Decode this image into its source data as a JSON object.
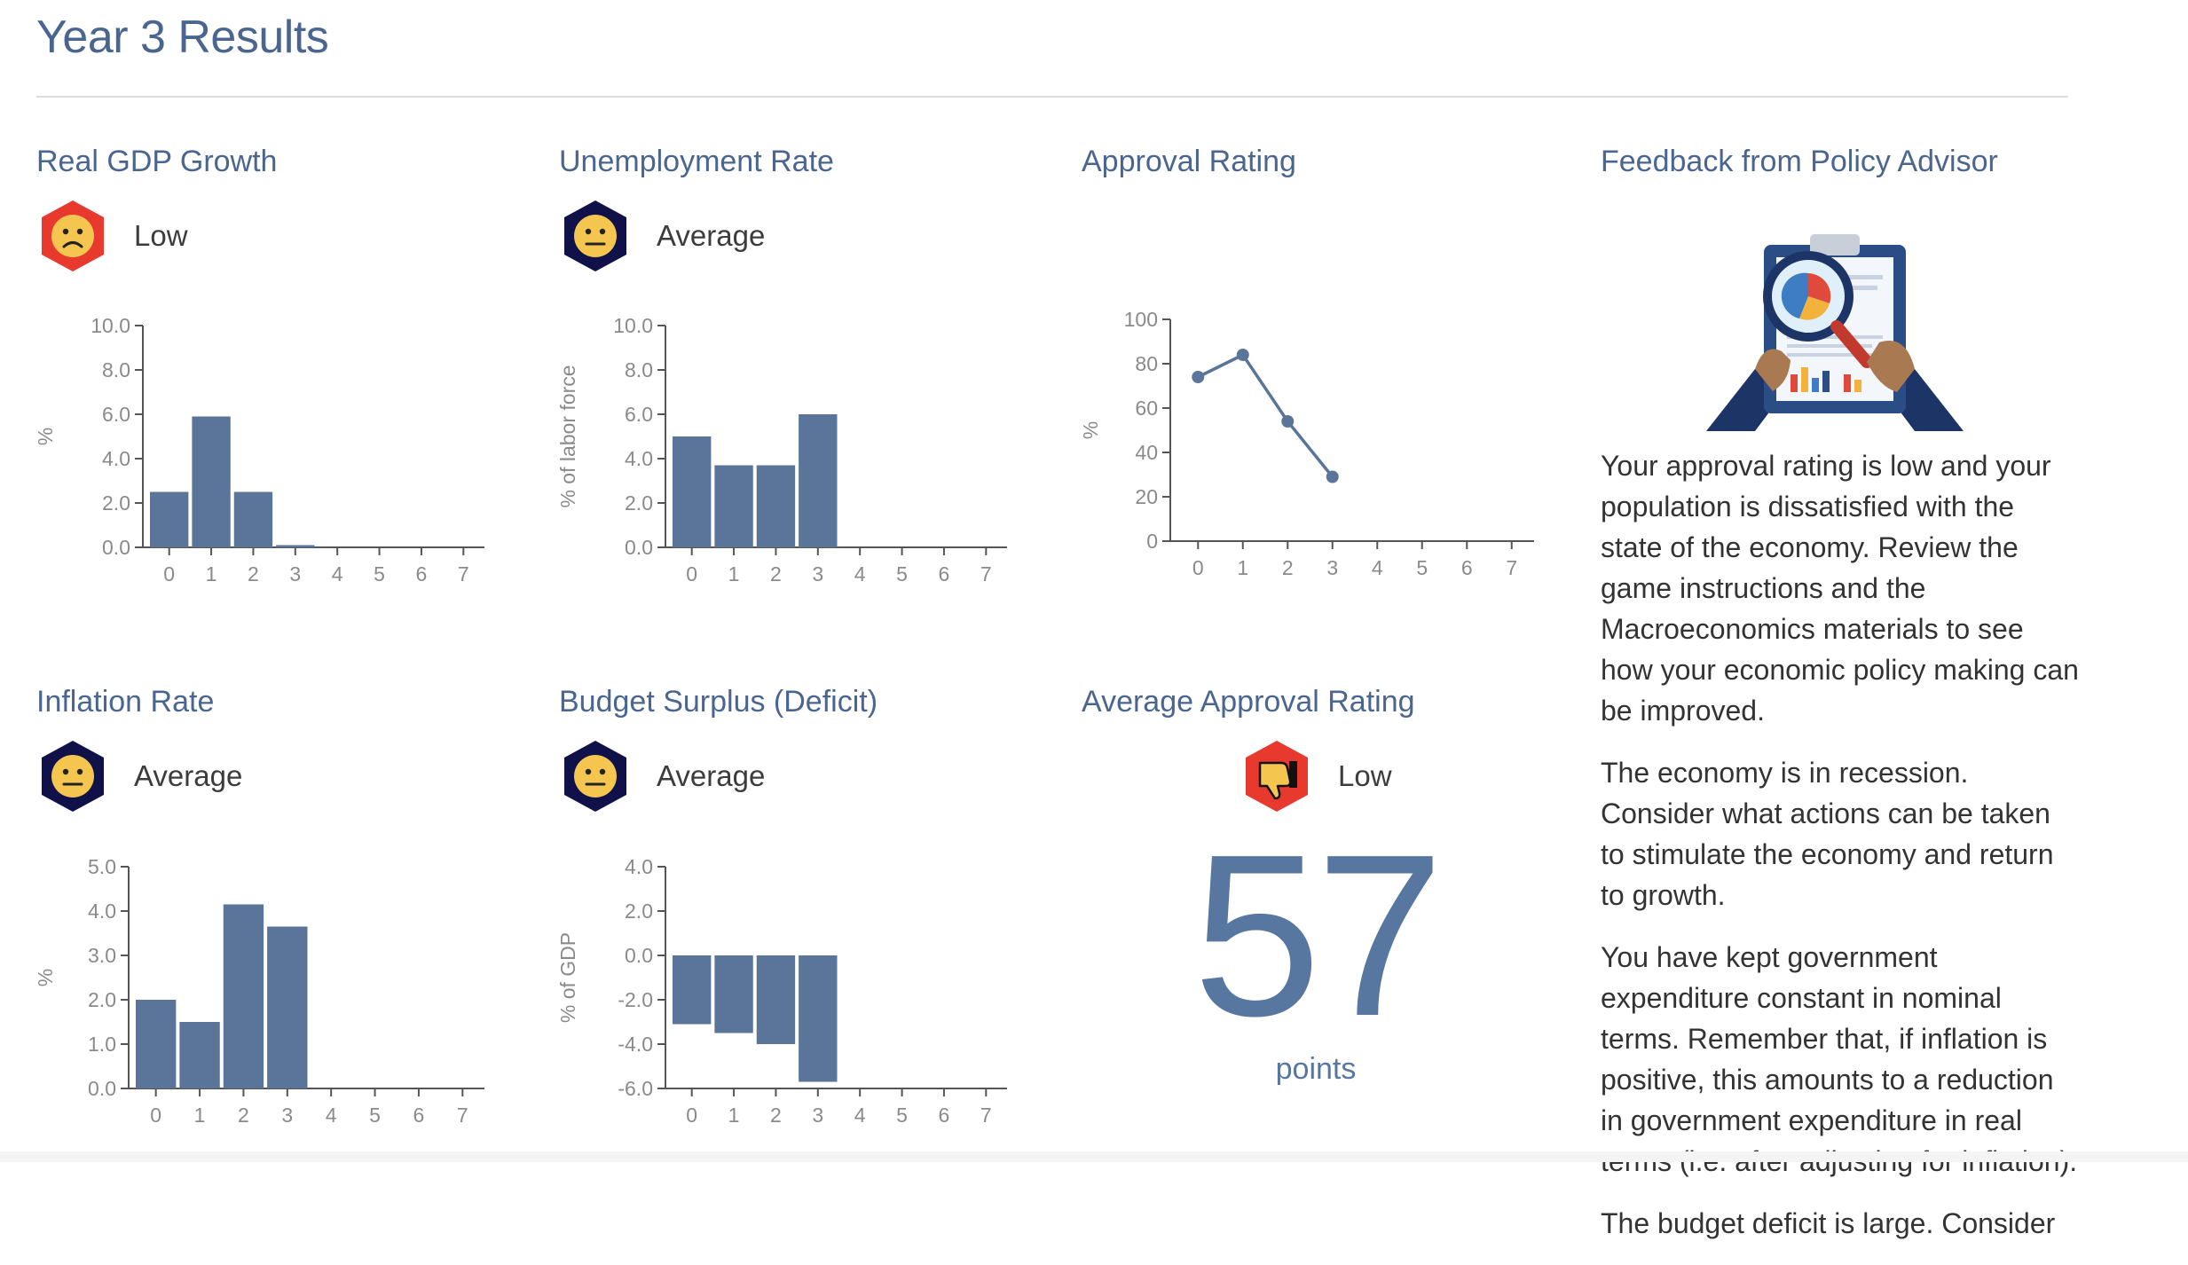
{
  "page": {
    "title": "Year 3 Results"
  },
  "panels": {
    "gdp": {
      "title": "Real GDP Growth",
      "status": "Low",
      "icon": "sad-face-icon",
      "ylabel": "%"
    },
    "unemployment": {
      "title": "Unemployment Rate",
      "status": "Average",
      "icon": "neutral-face-icon",
      "ylabel": "% of labor force"
    },
    "approval": {
      "title": "Approval Rating",
      "ylabel": "%"
    },
    "inflation": {
      "title": "Inflation Rate",
      "status": "Average",
      "icon": "neutral-face-icon",
      "ylabel": "%"
    },
    "budget": {
      "title": "Budget Surplus (Deficit)",
      "status": "Average",
      "icon": "neutral-face-icon",
      "ylabel": "% of GDP"
    },
    "avg_approval": {
      "title": "Average Approval Rating",
      "status": "Low",
      "icon": "thumbs-down-icon",
      "score": "57",
      "unit": "points"
    }
  },
  "feedback": {
    "title": "Feedback from Policy Advisor",
    "paragraphs": [
      "Your approval rating is low and your population is dissatisfied with the state of the economy. Review the game instructions and the Macroeconomics materials to see how your economic policy making can be improved.",
      "The economy is in recession. Consider what actions can be taken to stimulate the economy and return to growth.",
      "You have kept government expenditure constant in nominal terms. Remember that, if inflation is positive, this amounts to a reduction in government expenditure in real terms (i.e. after adjusting for inflation).",
      "The budget deficit is large. Consider"
    ]
  },
  "colors": {
    "accent": "#4a6690",
    "bar": "#5a7599",
    "status_low": "#e8392f",
    "status_average": "#11114a",
    "face": "#f4c64f"
  },
  "chart_data": [
    {
      "id": "gdp",
      "type": "bar",
      "categories": [
        "0",
        "1",
        "2",
        "3",
        "4",
        "5",
        "6",
        "7"
      ],
      "values": [
        2.5,
        5.9,
        2.5,
        0.1,
        null,
        null,
        null,
        null
      ],
      "ylabel": "%",
      "ylim": [
        0,
        10
      ],
      "yticks": [
        "0.0",
        "2.0",
        "4.0",
        "6.0",
        "8.0",
        "10.0"
      ]
    },
    {
      "id": "unemployment",
      "type": "bar",
      "categories": [
        "0",
        "1",
        "2",
        "3",
        "4",
        "5",
        "6",
        "7"
      ],
      "values": [
        5.0,
        3.7,
        3.7,
        6.0,
        null,
        null,
        null,
        null
      ],
      "ylabel": "% of labor force",
      "ylim": [
        0,
        10
      ],
      "yticks": [
        "0.0",
        "2.0",
        "4.0",
        "6.0",
        "8.0",
        "10.0"
      ]
    },
    {
      "id": "approval",
      "type": "line",
      "categories": [
        "0",
        "1",
        "2",
        "3",
        "4",
        "5",
        "6",
        "7"
      ],
      "values": [
        74,
        84,
        54,
        29,
        null,
        null,
        null,
        null
      ],
      "ylabel": "%",
      "ylim": [
        0,
        100
      ],
      "yticks": [
        "0",
        "20",
        "40",
        "60",
        "80",
        "100"
      ]
    },
    {
      "id": "inflation",
      "type": "bar",
      "categories": [
        "0",
        "1",
        "2",
        "3",
        "4",
        "5",
        "6",
        "7"
      ],
      "values": [
        2.0,
        1.5,
        4.15,
        3.65,
        null,
        null,
        null,
        null
      ],
      "ylabel": "%",
      "ylim": [
        0,
        5
      ],
      "yticks": [
        "0.0",
        "1.0",
        "2.0",
        "3.0",
        "4.0",
        "5.0"
      ]
    },
    {
      "id": "budget",
      "type": "bar",
      "categories": [
        "0",
        "1",
        "2",
        "3",
        "4",
        "5",
        "6",
        "7"
      ],
      "values": [
        -3.1,
        -3.5,
        -4.0,
        -5.7,
        null,
        null,
        null,
        null
      ],
      "ylabel": "% of GDP",
      "ylim": [
        -6,
        4
      ],
      "yticks": [
        "-6.0",
        "-4.0",
        "-2.0",
        "0.0",
        "2.0",
        "4.0"
      ]
    }
  ]
}
